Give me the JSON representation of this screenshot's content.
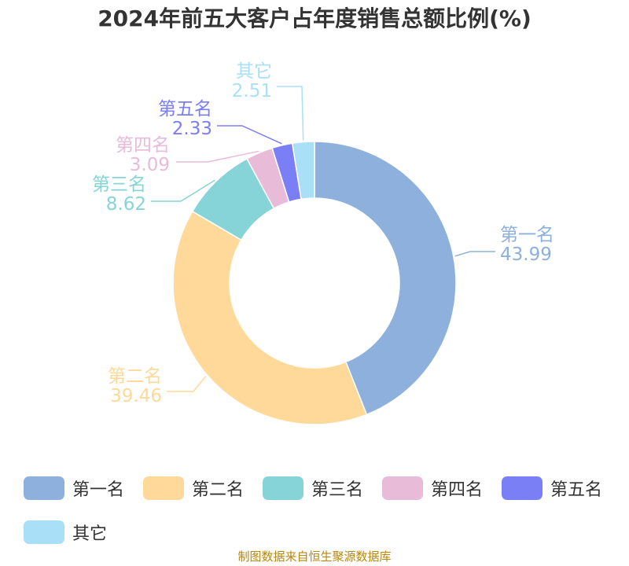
{
  "title": "2024年前五大客户占年度销售总额比例(%)",
  "source": "制图数据来自恒生聚源数据库",
  "chart_data": {
    "type": "pie",
    "variant": "donut",
    "title": "2024年前五大客户占年度销售总额比例(%)",
    "legend_position": "bottom",
    "categories": [
      "第一名",
      "第二名",
      "第三名",
      "第四名",
      "第五名",
      "其它"
    ],
    "values": [
      43.99,
      39.46,
      8.62,
      3.09,
      2.33,
      2.51
    ],
    "value_labels": [
      "43.99",
      "39.46",
      "8.62",
      "3.09",
      "2.33",
      "2.51"
    ],
    "colors": [
      "#8eb0dc",
      "#ffd999",
      "#86d4d8",
      "#e8bbd9",
      "#7b7ff5",
      "#a9e0f8"
    ]
  }
}
